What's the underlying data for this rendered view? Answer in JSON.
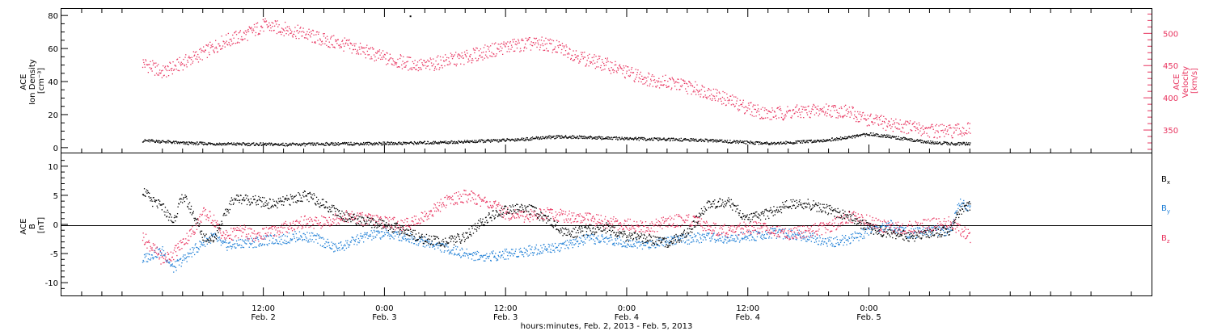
{
  "colors": {
    "black": "#000000",
    "pink": "#e8345f",
    "blue": "#1f7fd6"
  },
  "chart_data": [
    {
      "type": "scatter",
      "panel": "top",
      "ylabel_left": [
        "ACE",
        "Ion Density",
        "[cm⁻³]"
      ],
      "ylabel_right": [
        "ACE",
        "Velocity",
        "[km/s]"
      ],
      "left_ylim": [
        -3,
        84
      ],
      "left_ticks": [
        0,
        20,
        40,
        60,
        80
      ],
      "right_ylim": [
        315,
        538
      ],
      "right_ticks": [
        350,
        400,
        450,
        500
      ],
      "grid": false,
      "series": [
        {
          "axis": "left",
          "color": "black",
          "points": [
            [
              0.0,
              4.5
            ],
            [
              2.0,
              4.0
            ],
            [
              4.0,
              3.0
            ],
            [
              6.0,
              2.8
            ],
            [
              8.0,
              2.5
            ],
            [
              10.0,
              2.4
            ],
            [
              12.0,
              2.3
            ],
            [
              14.0,
              2.2
            ],
            [
              16.0,
              2.2
            ],
            [
              18.0,
              2.5
            ],
            [
              20.0,
              2.6
            ],
            [
              22.0,
              2.7
            ],
            [
              24.0,
              2.8
            ],
            [
              26.0,
              3.0
            ],
            [
              28.0,
              3.2
            ],
            [
              30.0,
              3.5
            ],
            [
              32.0,
              3.8
            ],
            [
              34.0,
              4.3
            ],
            [
              36.0,
              4.8
            ],
            [
              38.0,
              5.5
            ],
            [
              40.0,
              6.5
            ],
            [
              42.0,
              6.8
            ],
            [
              44.0,
              6.5
            ],
            [
              46.0,
              6.0
            ],
            [
              48.0,
              5.8
            ],
            [
              50.0,
              5.5
            ],
            [
              52.0,
              5.2
            ],
            [
              54.0,
              5.0
            ],
            [
              56.0,
              4.6
            ],
            [
              58.0,
              4.0
            ],
            [
              60.0,
              3.4
            ],
            [
              62.0,
              3.0
            ],
            [
              64.0,
              3.2
            ],
            [
              66.0,
              4.0
            ],
            [
              68.0,
              5.0
            ],
            [
              70.0,
              6.5
            ],
            [
              72.0,
              8.5
            ],
            [
              74.0,
              7.0
            ],
            [
              76.0,
              5.0
            ],
            [
              78.0,
              3.5
            ],
            [
              80.0,
              2.8
            ],
            [
              82.0,
              2.5
            ]
          ]
        },
        {
          "axis": "right",
          "color": "pink",
          "points": [
            [
              0.0,
              455
            ],
            [
              2.0,
              440
            ],
            [
              4.0,
              455
            ],
            [
              6.0,
              470
            ],
            [
              8.0,
              488
            ],
            [
              10.0,
              497
            ],
            [
              12.0,
              513
            ],
            [
              14.0,
              508
            ],
            [
              16.0,
              500
            ],
            [
              18.0,
              490
            ],
            [
              20.0,
              483
            ],
            [
              22.0,
              473
            ],
            [
              24.0,
              462
            ],
            [
              26.0,
              455
            ],
            [
              28.0,
              450
            ],
            [
              30.0,
              458
            ],
            [
              32.0,
              463
            ],
            [
              34.0,
              472
            ],
            [
              36.0,
              480
            ],
            [
              38.0,
              484
            ],
            [
              40.0,
              484
            ],
            [
              42.0,
              474
            ],
            [
              44.0,
              460
            ],
            [
              46.0,
              452
            ],
            [
              48.0,
              440
            ],
            [
              50.0,
              430
            ],
            [
              52.0,
              425
            ],
            [
              54.0,
              418
            ],
            [
              56.0,
              410
            ],
            [
              58.0,
              397
            ],
            [
              60.0,
              385
            ],
            [
              62.0,
              375
            ],
            [
              64.0,
              378
            ],
            [
              66.0,
              380
            ],
            [
              68.0,
              382
            ],
            [
              70.0,
              378
            ],
            [
              72.0,
              366
            ],
            [
              74.0,
              360
            ],
            [
              76.0,
              355
            ],
            [
              78.0,
              350
            ],
            [
              80.0,
              348
            ],
            [
              82.0,
              352
            ]
          ]
        }
      ],
      "annotations": [
        {
          "x": 26.5,
          "y": 80,
          "text": "·"
        }
      ]
    },
    {
      "type": "scatter",
      "panel": "bottom",
      "ylabel_left": [
        "ACE",
        "B",
        "[nT]"
      ],
      "ylim": [
        -12.2,
        12.2
      ],
      "yticks": [
        -10,
        -5,
        0,
        5,
        10
      ],
      "grid": false,
      "zero_line": true,
      "legend_position": "right",
      "series": [
        {
          "name": "Bx",
          "name_main": "B",
          "name_sub": "x",
          "color": "black",
          "points": [
            [
              0.0,
              6.0
            ],
            [
              1.0,
              4.0
            ],
            [
              2.0,
              3.0
            ],
            [
              3.0,
              0.5
            ],
            [
              4.0,
              5.0
            ],
            [
              5.0,
              2.0
            ],
            [
              6.0,
              -2.0
            ],
            [
              7.0,
              -2.5
            ],
            [
              8.0,
              1.0
            ],
            [
              9.0,
              4.5
            ],
            [
              10.0,
              4.5
            ],
            [
              11.0,
              4.2
            ],
            [
              12.0,
              3.8
            ],
            [
              13.0,
              3.5
            ],
            [
              14.0,
              4.0
            ],
            [
              15.0,
              4.5
            ],
            [
              16.0,
              5.0
            ],
            [
              17.0,
              4.5
            ],
            [
              18.0,
              3.5
            ],
            [
              19.0,
              2.5
            ],
            [
              20.0,
              1.5
            ],
            [
              22.0,
              0.5
            ],
            [
              24.0,
              0.0
            ],
            [
              26.0,
              -1.0
            ],
            [
              28.0,
              -2.5
            ],
            [
              30.0,
              -3.0
            ],
            [
              32.0,
              -2.0
            ],
            [
              34.0,
              1.0
            ],
            [
              36.0,
              2.5
            ],
            [
              38.0,
              3.0
            ],
            [
              40.0,
              1.0
            ],
            [
              42.0,
              -1.5
            ],
            [
              44.0,
              -1.0
            ],
            [
              46.0,
              -0.5
            ],
            [
              48.0,
              -2.0
            ],
            [
              50.0,
              -2.5
            ],
            [
              52.0,
              -3.0
            ],
            [
              54.0,
              -1.5
            ],
            [
              56.0,
              3.5
            ],
            [
              58.0,
              4.0
            ],
            [
              60.0,
              1.0
            ],
            [
              62.0,
              2.0
            ],
            [
              64.0,
              3.5
            ],
            [
              66.0,
              3.5
            ],
            [
              68.0,
              2.5
            ],
            [
              70.0,
              1.5
            ],
            [
              72.0,
              -0.5
            ],
            [
              74.0,
              -1.5
            ],
            [
              76.0,
              -2.0
            ],
            [
              78.0,
              -1.5
            ],
            [
              80.0,
              -1.0
            ],
            [
              81.0,
              2.5
            ],
            [
              82.0,
              3.5
            ]
          ]
        },
        {
          "name": "By",
          "name_main": "B",
          "name_sub": "y",
          "color": "blue",
          "points": [
            [
              0.0,
              -6.0
            ],
            [
              1.0,
              -5.0
            ],
            [
              2.0,
              -4.5
            ],
            [
              3.0,
              -7.5
            ],
            [
              4.0,
              -6.0
            ],
            [
              5.0,
              -4.5
            ],
            [
              6.0,
              -3.0
            ],
            [
              7.0,
              -2.0
            ],
            [
              8.0,
              -3.5
            ],
            [
              9.0,
              -3.5
            ],
            [
              10.0,
              -3.0
            ],
            [
              11.0,
              -3.0
            ],
            [
              12.0,
              -2.8
            ],
            [
              13.0,
              -2.5
            ],
            [
              14.0,
              -2.5
            ],
            [
              15.0,
              -2.0
            ],
            [
              16.0,
              -2.0
            ],
            [
              17.0,
              -2.2
            ],
            [
              18.0,
              -3.0
            ],
            [
              19.0,
              -4.0
            ],
            [
              20.0,
              -3.5
            ],
            [
              22.0,
              -2.0
            ],
            [
              24.0,
              -1.5
            ],
            [
              26.0,
              -2.0
            ],
            [
              28.0,
              -3.0
            ],
            [
              30.0,
              -4.0
            ],
            [
              32.0,
              -5.0
            ],
            [
              34.0,
              -5.5
            ],
            [
              36.0,
              -5.0
            ],
            [
              38.0,
              -4.5
            ],
            [
              40.0,
              -4.0
            ],
            [
              42.0,
              -3.5
            ],
            [
              44.0,
              -2.5
            ],
            [
              46.0,
              -2.5
            ],
            [
              48.0,
              -3.0
            ],
            [
              50.0,
              -3.5
            ],
            [
              52.0,
              -2.5
            ],
            [
              54.0,
              -2.5
            ],
            [
              56.0,
              -2.0
            ],
            [
              58.0,
              -2.5
            ],
            [
              60.0,
              -2.0
            ],
            [
              62.0,
              -1.5
            ],
            [
              64.0,
              -1.5
            ],
            [
              66.0,
              -2.0
            ],
            [
              68.0,
              -3.0
            ],
            [
              70.0,
              -2.5
            ],
            [
              72.0,
              -1.0
            ],
            [
              74.0,
              0.0
            ],
            [
              76.0,
              -1.5
            ],
            [
              78.0,
              -1.0
            ],
            [
              80.0,
              -1.0
            ],
            [
              81.0,
              4.0
            ],
            [
              82.0,
              3.0
            ]
          ]
        },
        {
          "name": "Bz",
          "name_main": "B",
          "name_sub": "z",
          "color": "pink",
          "points": [
            [
              0.0,
              -2.0
            ],
            [
              1.0,
              -4.0
            ],
            [
              2.0,
              -6.0
            ],
            [
              3.0,
              -5.0
            ],
            [
              4.0,
              -3.0
            ],
            [
              5.0,
              -1.0
            ],
            [
              6.0,
              2.0
            ],
            [
              7.0,
              1.0
            ],
            [
              8.0,
              -2.0
            ],
            [
              9.0,
              -1.5
            ],
            [
              10.0,
              -1.0
            ],
            [
              11.0,
              -2.0
            ],
            [
              12.0,
              -1.5
            ],
            [
              13.0,
              -1.0
            ],
            [
              14.0,
              -0.5
            ],
            [
              15.0,
              0.0
            ],
            [
              16.0,
              0.5
            ],
            [
              17.0,
              0.3
            ],
            [
              18.0,
              0.5
            ],
            [
              19.0,
              1.0
            ],
            [
              20.0,
              1.5
            ],
            [
              22.0,
              1.0
            ],
            [
              24.0,
              0.5
            ],
            [
              26.0,
              0.0
            ],
            [
              28.0,
              1.5
            ],
            [
              30.0,
              4.0
            ],
            [
              32.0,
              5.0
            ],
            [
              34.0,
              4.0
            ],
            [
              36.0,
              2.0
            ],
            [
              38.0,
              1.5
            ],
            [
              40.0,
              2.0
            ],
            [
              42.0,
              1.5
            ],
            [
              44.0,
              1.0
            ],
            [
              46.0,
              0.5
            ],
            [
              48.0,
              0.0
            ],
            [
              50.0,
              -0.5
            ],
            [
              52.0,
              0.5
            ],
            [
              54.0,
              1.0
            ],
            [
              56.0,
              -0.5
            ],
            [
              58.0,
              -1.0
            ],
            [
              60.0,
              -0.5
            ],
            [
              62.0,
              -0.5
            ],
            [
              64.0,
              -1.5
            ],
            [
              66.0,
              -1.0
            ],
            [
              68.0,
              -0.5
            ],
            [
              70.0,
              1.5
            ],
            [
              72.0,
              0.5
            ],
            [
              74.0,
              -0.5
            ],
            [
              76.0,
              -0.5
            ],
            [
              78.0,
              0.0
            ],
            [
              80.0,
              0.5
            ],
            [
              81.0,
              -1.0
            ],
            [
              82.0,
              -2.0
            ]
          ]
        }
      ]
    }
  ],
  "x_axis": {
    "range": [
      -8.0,
      100.0
    ],
    "ticks": [
      {
        "x": 12,
        "time": "12:00",
        "date": "Feb. 2"
      },
      {
        "x": 24,
        "time": "0:00",
        "date": "Feb. 3"
      },
      {
        "x": 36,
        "time": "12:00",
        "date": "Feb. 3"
      },
      {
        "x": 48,
        "time": "0:00",
        "date": "Feb. 4"
      },
      {
        "x": 60,
        "time": "12:00",
        "date": "Feb. 4"
      },
      {
        "x": 72,
        "time": "0:00",
        "date": "Feb. 5"
      }
    ],
    "label": "hours:minutes, Feb.  2, 2013 - Feb.  5, 2013"
  }
}
